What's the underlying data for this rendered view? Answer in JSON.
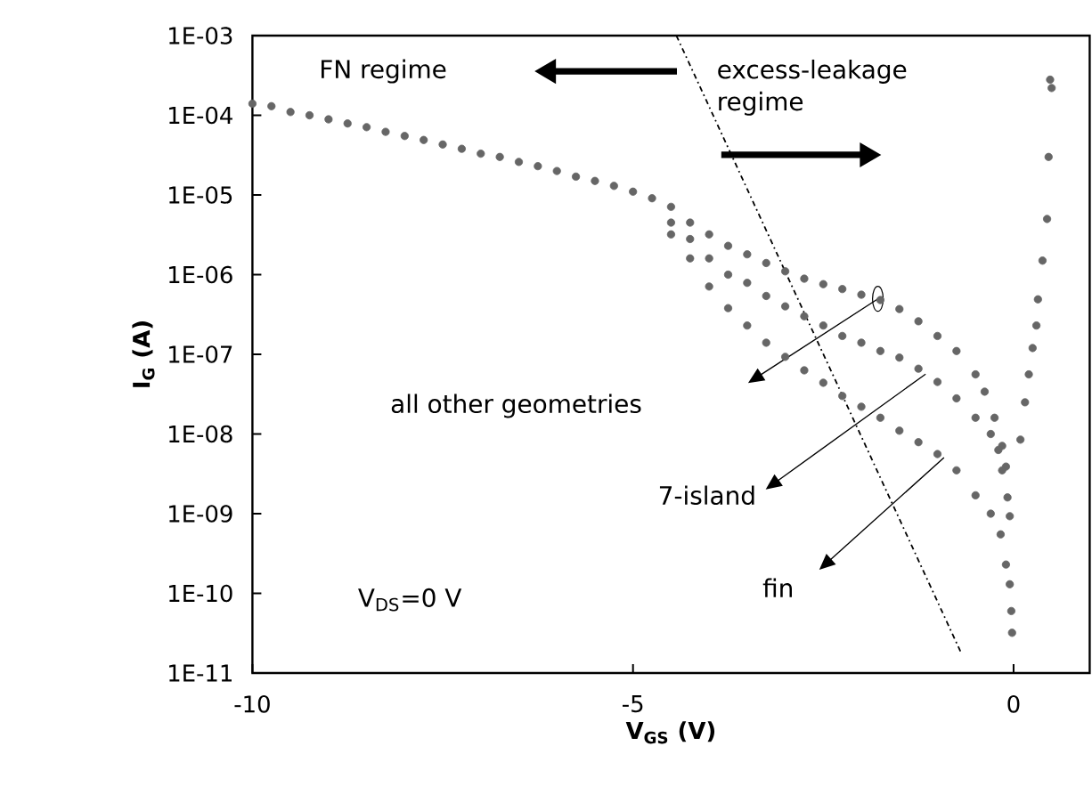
{
  "chart_data": {
    "type": "scatter",
    "xlabel": "V$_{GS}$ (V)",
    "ylabel": "I$_{G}$ (A)",
    "log": "y",
    "marker": "circle",
    "xlim": [
      -10,
      1
    ],
    "xticks": [
      -10,
      -5,
      0
    ],
    "ylim": [
      1e-11,
      0.001
    ],
    "yticks": [
      {
        "value": 1e-11,
        "label": "1E-11"
      },
      {
        "value": 1e-10,
        "label": "1E-10"
      },
      {
        "value": 1e-09,
        "label": "1E-09"
      },
      {
        "value": 1e-08,
        "label": "1E-08"
      },
      {
        "value": 1e-07,
        "label": "1E-07"
      },
      {
        "value": 1e-06,
        "label": "1E-06"
      },
      {
        "value": 1e-05,
        "label": "1E-05"
      },
      {
        "value": 0.0001,
        "label": "1E-04"
      },
      {
        "value": 0.001,
        "label": "1E-03"
      }
    ],
    "series": [
      {
        "color": "#666666",
        "x": [
          -10,
          -9.75,
          -9.5,
          -9.25,
          -9.0,
          -8.75,
          -8.5,
          -8.25,
          -8.0,
          -7.75,
          -7.5,
          -7.25,
          -7.0,
          -6.75,
          -6.5,
          -6.25,
          -6.0,
          -5.75,
          -5.5,
          -5.25,
          -5.0,
          -4.75,
          -4.5,
          -4.25,
          -4.0,
          -3.75,
          -3.5,
          -3.25,
          -3.0,
          -2.75,
          -2.5,
          -2.25,
          -2.0,
          -1.75,
          -1.5,
          -1.25,
          -1.0,
          -0.75,
          -0.5,
          -0.38,
          -0.25,
          -0.15,
          -0.1,
          0.09,
          0.15,
          0.2,
          0.25,
          0.3,
          0.32,
          0.38,
          0.44,
          0.46,
          0.48,
          0.5
        ],
        "values": [
          0.00014,
          0.00013,
          0.00011,
          0.0001,
          8.9e-05,
          7.9e-05,
          7.1e-05,
          6.2e-05,
          5.5e-05,
          4.9e-05,
          4.3e-05,
          3.8e-05,
          3.3e-05,
          3e-05,
          2.6e-05,
          2.3e-05,
          2e-05,
          1.7e-05,
          1.5e-05,
          1.3e-05,
          1.1e-05,
          9.1e-06,
          7.1e-06,
          4.5e-06,
          3.2e-06,
          2.3e-06,
          1.8e-06,
          1.4e-06,
          1.1e-06,
          8.9e-07,
          7.6e-07,
          6.6e-07,
          5.6e-07,
          4.8e-07,
          3.7e-07,
          2.6e-07,
          1.7e-07,
          1.1e-07,
          5.6e-08,
          3.4e-08,
          1.6e-08,
          7.1e-09,
          3.9e-09,
          8.5e-09,
          2.5e-08,
          5.6e-08,
          1.2e-07,
          2.3e-07,
          4.9e-07,
          1.5e-06,
          5e-06,
          3e-05,
          0.00028,
          0.00022
        ]
      },
      {
        "color": "#666666",
        "x": [
          -4.5,
          -4.25,
          -4.0,
          -3.75,
          -3.5,
          -3.25,
          -3.0,
          -2.75,
          -2.5,
          -2.25,
          -2.0,
          -1.75,
          -1.5,
          -1.25,
          -1.0,
          -0.75,
          -0.5,
          -0.3,
          -0.2,
          -0.15,
          -0.08,
          -0.05
        ],
        "values": [
          4.5e-06,
          2.8e-06,
          1.6e-06,
          1e-06,
          7.9e-07,
          5.4e-07,
          4e-07,
          3e-07,
          2.3e-07,
          1.7e-07,
          1.4e-07,
          1.1e-07,
          9.1e-08,
          6.6e-08,
          4.5e-08,
          2.8e-08,
          1.6e-08,
          1e-08,
          6.3e-09,
          3.5e-09,
          1.6e-09,
          9.3e-10
        ]
      },
      {
        "color": "#666666",
        "x": [
          -4.5,
          -4.25,
          -4.0,
          -3.75,
          -3.5,
          -3.25,
          -3.0,
          -2.75,
          -2.5,
          -2.25,
          -2.0,
          -1.75,
          -1.5,
          -1.25,
          -1.0,
          -0.75,
          -0.5,
          -0.3,
          -0.17,
          -0.1,
          -0.05,
          -0.03,
          -0.02
        ],
        "values": [
          3.2e-06,
          1.6e-06,
          7.1e-07,
          3.8e-07,
          2.3e-07,
          1.4e-07,
          9.3e-08,
          6.3e-08,
          4.4e-08,
          3e-08,
          2.2e-08,
          1.6e-08,
          1.1e-08,
          7.9e-09,
          5.6e-09,
          3.5e-09,
          1.7e-09,
          1e-09,
          5.5e-10,
          2.3e-10,
          1.3e-10,
          6e-11,
          3.2e-11
        ]
      },
      {
        "type": "line",
        "color": "#000000",
        "line_style": "dashed",
        "marker": "none",
        "x": [
          -4.43,
          -0.69
        ],
        "values": [
          0.001,
          1.8e-11
        ]
      }
    ],
    "annotations": [
      "FN regime",
      "excess-leakage regime",
      "V$_{DS}$=0 V",
      "all other geometries",
      "7-island",
      "fin"
    ]
  }
}
